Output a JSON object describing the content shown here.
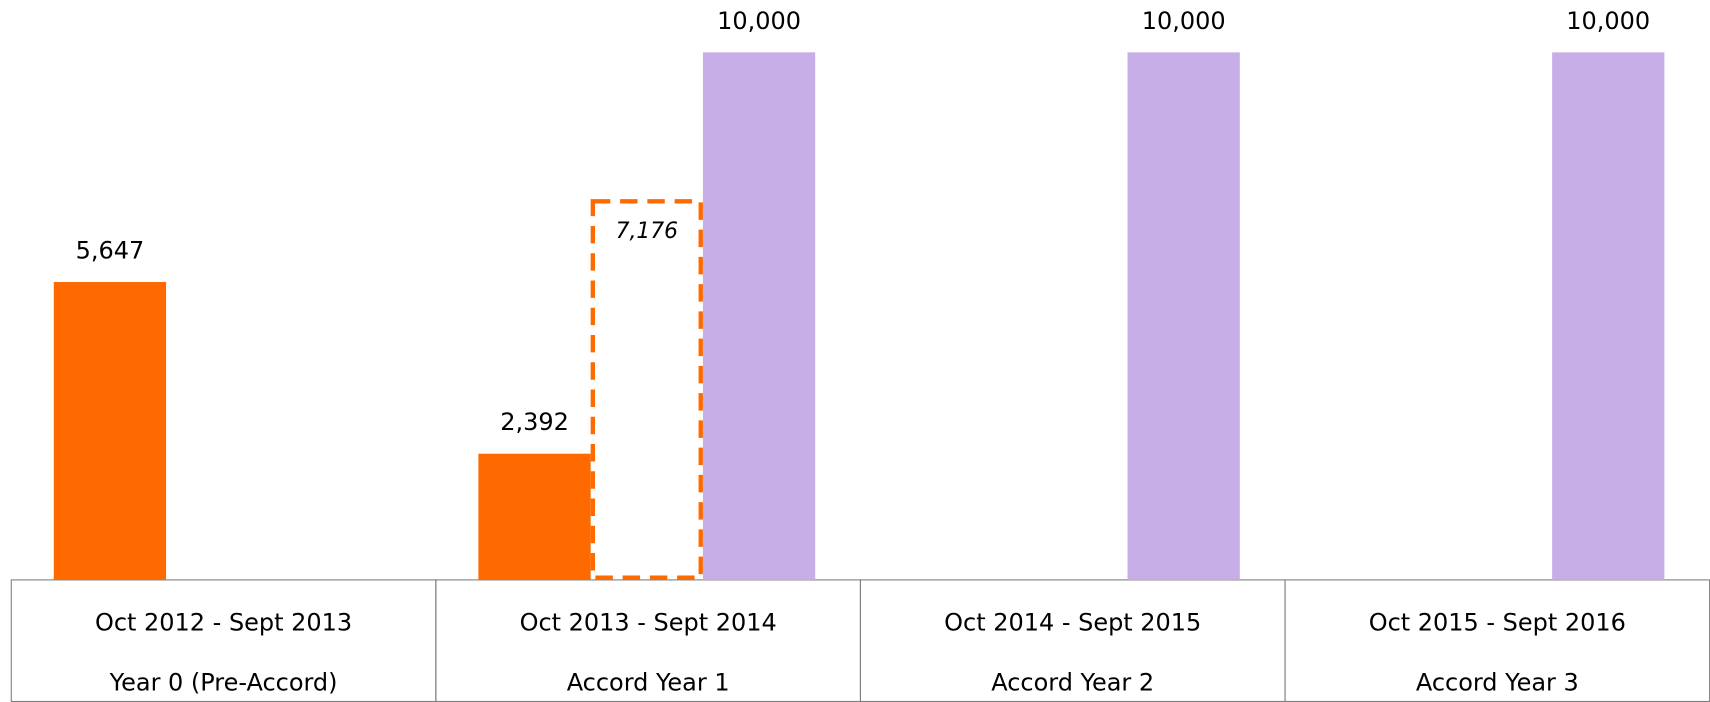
{
  "chart_data": {
    "type": "bar",
    "categories": [
      "Oct 2012 - Sept 2013",
      "Oct 2013 - Sept 2014",
      "Oct 2014 - Sept 2015",
      "Oct 2015 - Sept 2016"
    ],
    "category_labels": [
      "Year 0 (Pre-Accord)",
      "Accord Year 1",
      "Accord Year 2",
      "Accord Year 3"
    ],
    "series": [
      {
        "color": "#ff6a00",
        "style": "solid",
        "values": [
          5647,
          2392,
          null,
          null
        ],
        "value_labels": [
          "5,647",
          "2,392",
          null,
          null
        ]
      },
      {
        "color": "#ff6a00",
        "style": "dashed",
        "values": [
          null,
          7176,
          null,
          null
        ],
        "value_labels": [
          null,
          "7,176",
          null,
          null
        ]
      },
      {
        "color": "#c8aee6",
        "style": "solid",
        "values": [
          null,
          10000,
          10000,
          10000
        ],
        "value_labels": [
          null,
          "10,000",
          "10,000",
          "10,000"
        ]
      }
    ],
    "ylim": [
      0,
      10000
    ]
  }
}
